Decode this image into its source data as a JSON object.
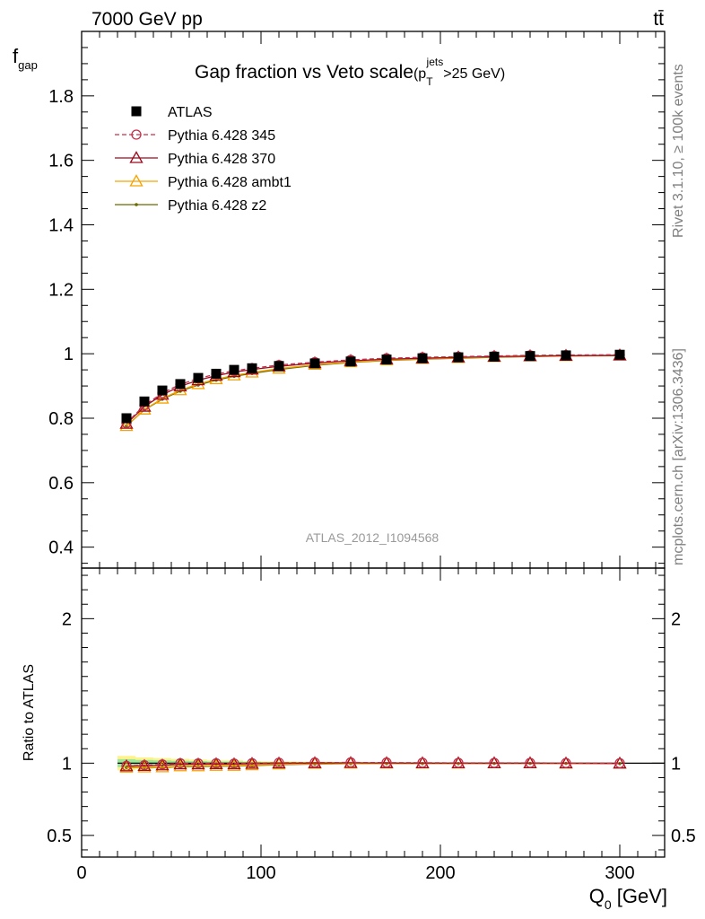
{
  "header": {
    "energy_label": "7000 GeV pp",
    "process_label": "tt̄"
  },
  "side_labels": {
    "rivet": "Rivet 3.1.10, ≥ 100k events",
    "mcplots": "mcplots.cern.ch [arXiv:1306.3436]"
  },
  "watermark": "ATLAS_2012_I1094568",
  "chart_data": [
    {
      "type": "scatter",
      "title": "Gap fraction vs Veto scale",
      "title_suffix": {
        "open": "(p",
        "sub": "T",
        "sup": "jets",
        "close": ">25 GeV)"
      },
      "ylabel": {
        "main": "f",
        "sub": "gap"
      },
      "xlabel": {
        "main": "Q",
        "sub": "0",
        "unit": " [GeV]"
      },
      "xlim": [
        0,
        325
      ],
      "ylim": [
        0.335,
        2.0
      ],
      "y_ticks": [
        0.4,
        0.6,
        0.8,
        1,
        1.2,
        1.4,
        1.6,
        1.8
      ],
      "y_tick_labels": [
        "0.4",
        "0.6",
        "0.8",
        "1",
        "1.2",
        "1.4",
        "1.6",
        "1.8"
      ],
      "x_ticks": [
        0,
        100,
        200,
        300
      ],
      "legend_position": "top-left",
      "x": [
        25,
        35,
        45,
        55,
        65,
        75,
        85,
        95,
        110,
        130,
        150,
        170,
        190,
        210,
        230,
        250,
        270,
        300
      ],
      "series": [
        {
          "name": "ATLAS",
          "color": "#000000",
          "marker": "square",
          "values": [
            0.8,
            0.852,
            0.886,
            0.906,
            0.925,
            0.938,
            0.95,
            0.955,
            0.962,
            0.97,
            0.976,
            0.982,
            0.986,
            0.989,
            0.991,
            0.993,
            0.995,
            0.997
          ]
        },
        {
          "name": "Pythia 6.428 345",
          "color": "#c0304a",
          "marker": "circle-open",
          "dash": true,
          "values": [
            0.785,
            0.84,
            0.878,
            0.905,
            0.923,
            0.937,
            0.947,
            0.955,
            0.965,
            0.974,
            0.981,
            0.986,
            0.989,
            0.991,
            0.993,
            0.995,
            0.996,
            0.997
          ]
        },
        {
          "name": "Pythia 6.428 370",
          "color": "#9e0a1e",
          "marker": "triangle-open",
          "values": [
            0.783,
            0.836,
            0.873,
            0.899,
            0.918,
            0.932,
            0.943,
            0.951,
            0.961,
            0.971,
            0.978,
            0.983,
            0.986,
            0.989,
            0.991,
            0.993,
            0.994,
            0.995
          ]
        },
        {
          "name": "Pythia 6.428 ambt1",
          "color": "#f5a300",
          "marker": "triangle-open",
          "values": [
            0.776,
            0.827,
            0.861,
            0.887,
            0.906,
            0.921,
            0.933,
            0.942,
            0.954,
            0.966,
            0.974,
            0.98,
            0.984,
            0.987,
            0.99,
            0.992,
            0.993,
            0.995
          ]
        },
        {
          "name": "Pythia 6.428 z2",
          "color": "#6b6b00",
          "marker": "dot",
          "values": [
            0.776,
            0.826,
            0.859,
            0.884,
            0.903,
            0.918,
            0.93,
            0.939,
            0.951,
            0.964,
            0.973,
            0.979,
            0.983,
            0.986,
            0.989,
            0.991,
            0.993,
            0.994
          ]
        }
      ]
    },
    {
      "type": "line",
      "ylabel": "Ratio to ATLAS",
      "ylim": [
        0.35,
        2.35
      ],
      "y_ticks": [
        0.5,
        1,
        2
      ],
      "y_tick_labels": [
        "0.5",
        "1",
        "2"
      ],
      "x_ticks": [
        0,
        100,
        200,
        300
      ],
      "x_tick_labels": [
        "0",
        "100",
        "200",
        "300"
      ],
      "xlim": [
        0,
        325
      ],
      "band": {
        "x_edges": [
          20,
          30,
          40,
          50,
          60,
          70,
          80,
          90,
          100,
          120,
          140,
          160,
          180,
          200,
          220,
          240,
          260,
          280,
          325
        ],
        "half_width": [
          0.05,
          0.04,
          0.035,
          0.03,
          0.025,
          0.02,
          0.02,
          0.015,
          0.012,
          0.01,
          0.008,
          0.006,
          0.005,
          0.004,
          0.004,
          0.003,
          0.003,
          0.003
        ]
      },
      "series": [
        {
          "name": "Pythia 6.428 345",
          "values": [
            0.981,
            0.986,
            0.991,
            0.999,
            0.998,
            0.999,
            0.997,
            1.0,
            1.003,
            1.004,
            1.005,
            1.004,
            1.003,
            1.002,
            1.002,
            1.002,
            1.001,
            1.0
          ]
        },
        {
          "name": "Pythia 6.428 370",
          "values": [
            0.979,
            0.981,
            0.985,
            0.992,
            0.992,
            0.994,
            0.993,
            0.996,
            0.999,
            1.001,
            1.002,
            1.001,
            1.0,
            1.0,
            1.0,
            1.0,
            0.999,
            0.998
          ]
        },
        {
          "name": "Pythia 6.428 ambt1",
          "values": [
            0.97,
            0.971,
            0.972,
            0.979,
            0.979,
            0.982,
            0.982,
            0.986,
            0.992,
            0.996,
            0.998,
            0.998,
            0.998,
            0.998,
            0.999,
            0.999,
            0.998,
            0.998
          ]
        },
        {
          "name": "Pythia 6.428 z2",
          "values": [
            0.97,
            0.97,
            0.97,
            0.976,
            0.976,
            0.979,
            0.979,
            0.983,
            0.989,
            0.994,
            0.997,
            0.997,
            0.997,
            0.997,
            0.998,
            0.998,
            0.998,
            0.997
          ]
        }
      ]
    }
  ]
}
